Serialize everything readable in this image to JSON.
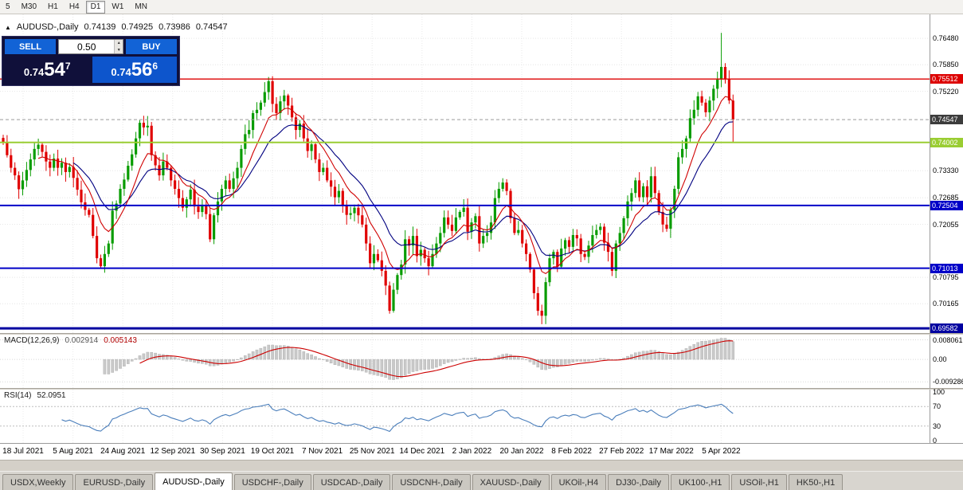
{
  "toolbar": {
    "buttons": [
      "5",
      "M30",
      "H1",
      "H4",
      "D1",
      "W1",
      "MN"
    ],
    "active": "D1"
  },
  "symbol_info": {
    "arrow": "▲",
    "name": "AUDUSD-,Daily",
    "open": "0.74139",
    "high": "0.74925",
    "low": "0.73986",
    "close": "0.74547"
  },
  "trade_panel": {
    "sell_label": "SELL",
    "buy_label": "BUY",
    "lot_value": "0.50",
    "sell_price": {
      "base": "0.74",
      "big": "54",
      "sup": "7"
    },
    "buy_price": {
      "base": "0.74",
      "big": "56",
      "sup": "6"
    }
  },
  "tabs": {
    "items": [
      "USDX,Weekly",
      "EURUSD-,Daily",
      "AUDUSD-,Daily",
      "USDCHF-,Daily",
      "USDCAD-,Daily",
      "USDCNH-,Daily",
      "XAUUSD-,Daily",
      "UKOil-,H4",
      "DJ30-,Daily",
      "UK100-,H1",
      "USOil-,H1",
      "HK50-,H1"
    ],
    "active_index": 2
  },
  "chart_data": {
    "type": "candlestick",
    "symbol": "AUDUSD-,Daily",
    "x_labels": [
      "18 Jul 2021",
      "5 Aug 2021",
      "24 Aug 2021",
      "12 Sep 2021",
      "30 Sep 2021",
      "19 Oct 2021",
      "7 Nov 2021",
      "25 Nov 2021",
      "14 Dec 2021",
      "2 Jan 2022",
      "20 Jan 2022",
      "8 Feb 2022",
      "27 Feb 2022",
      "17 Mar 2022",
      "5 Apr 2022"
    ],
    "price_range": {
      "min": 0.6947,
      "max": 0.7705
    },
    "y_ticks": [
      0.7648,
      0.7585,
      0.7522,
      0.7333,
      0.72685,
      0.72055,
      0.70795,
      0.70165
    ],
    "current_price": 0.74547,
    "up_color": "#089c00",
    "down_color": "#e00000",
    "hlines": [
      {
        "price": 0.75512,
        "color": "#dd0000",
        "width": 1.4
      },
      {
        "price": 0.74002,
        "color": "#9acd32",
        "width": 2
      },
      {
        "price": 0.72504,
        "color": "#0000c8",
        "width": 2
      },
      {
        "price": 0.71013,
        "color": "#0000c8",
        "width": 2
      },
      {
        "price": 0.69582,
        "color": "#0000a0",
        "width": 3
      }
    ],
    "moving_averages": [
      {
        "period": 18,
        "color": "#000080"
      },
      {
        "period": 9,
        "color": "#d00000"
      }
    ],
    "closes": [
      0.7399,
      0.737,
      0.734,
      0.7322,
      0.7289,
      0.731,
      0.7335,
      0.736,
      0.7385,
      0.7395,
      0.7378,
      0.7355,
      0.734,
      0.7362,
      0.734,
      0.7352,
      0.733,
      0.7342,
      0.7316,
      0.7288,
      0.7258,
      0.724,
      0.7228,
      0.7178,
      0.7125,
      0.7106,
      0.7135,
      0.716,
      0.7238,
      0.7255,
      0.729,
      0.7312,
      0.7345,
      0.7372,
      0.741,
      0.7447,
      0.7436,
      0.744,
      0.737,
      0.7346,
      0.7322,
      0.7355,
      0.734,
      0.731,
      0.729,
      0.7268,
      0.7245,
      0.7265,
      0.7288,
      0.7248,
      0.7235,
      0.7252,
      0.723,
      0.717,
      0.7227,
      0.726,
      0.729,
      0.731,
      0.729,
      0.7315,
      0.734,
      0.7385,
      0.742,
      0.743,
      0.747,
      0.7478,
      0.7495,
      0.752,
      0.7546,
      0.7492,
      0.747,
      0.7498,
      0.7512,
      0.7488,
      0.746,
      0.743,
      0.7445,
      0.741,
      0.738,
      0.7396,
      0.736,
      0.733,
      0.734,
      0.731,
      0.7295,
      0.727,
      0.7285,
      0.725,
      0.7228,
      0.7232,
      0.7245,
      0.7227,
      0.7205,
      0.716,
      0.7113,
      0.7135,
      0.712,
      0.7095,
      0.706,
      0.7,
      0.705,
      0.7085,
      0.711,
      0.717,
      0.7155,
      0.7178,
      0.713,
      0.7145,
      0.7125,
      0.7106,
      0.7135,
      0.716,
      0.7185,
      0.7222,
      0.7205,
      0.719,
      0.7222,
      0.7235,
      0.7245,
      0.7188,
      0.721,
      0.7225,
      0.716,
      0.7178,
      0.7185,
      0.721,
      0.7268,
      0.729,
      0.7305,
      0.7285,
      0.722,
      0.7185,
      0.7192,
      0.716,
      0.7135,
      0.7098,
      0.7042,
      0.7,
      0.6988,
      0.7068,
      0.7125,
      0.714,
      0.7105,
      0.7148,
      0.7168,
      0.7152,
      0.718,
      0.7172,
      0.7135,
      0.7128,
      0.7155,
      0.718,
      0.7192,
      0.72,
      0.7162,
      0.714,
      0.7095,
      0.716,
      0.7185,
      0.722,
      0.726,
      0.728,
      0.731,
      0.727,
      0.7296,
      0.727,
      0.732,
      0.728,
      0.7235,
      0.7205,
      0.7195,
      0.724,
      0.729,
      0.7365,
      0.7385,
      0.741,
      0.7458,
      0.7478,
      0.751,
      0.7495,
      0.7472,
      0.75,
      0.7528,
      0.755,
      0.758,
      0.7552,
      0.75,
      0.74547
    ],
    "wick_overrides": {
      "25": [
        null,
        0.71
      ],
      "68": [
        0.7556,
        null
      ],
      "99": [
        null,
        0.6993
      ],
      "138": [
        null,
        0.6968
      ],
      "184": [
        0.7661,
        null
      ],
      "187": [
        null,
        0.74
      ]
    },
    "macd": {
      "label": "MACD(12,26,9)",
      "fast": 12,
      "slow": 26,
      "signal": 9,
      "value_main": "0.002914",
      "value_signal": "0.005143",
      "axis": [
        {
          "v": 0.008061,
          "label": "0.008061"
        },
        {
          "v": 0,
          "label": "0.00"
        },
        {
          "v": -0.009286,
          "label": "-0.009286"
        }
      ],
      "range": {
        "min": -0.0118,
        "max": 0.0102
      },
      "bar_color": "#c9c9c9",
      "signal_color": "#cc0000"
    },
    "rsi": {
      "label": "RSI(14)",
      "period": 14,
      "value": "52.0951",
      "levels": [
        100,
        70,
        30,
        0
      ],
      "dashed_levels": [
        70,
        30
      ],
      "range": {
        "min": -5,
        "max": 105
      },
      "color": "#4a7ebb"
    }
  }
}
